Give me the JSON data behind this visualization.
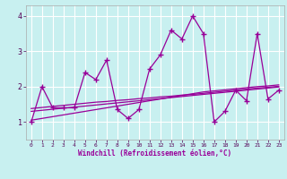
{
  "x": [
    0,
    1,
    2,
    3,
    4,
    5,
    6,
    7,
    8,
    9,
    10,
    11,
    12,
    13,
    14,
    15,
    16,
    17,
    18,
    19,
    20,
    21,
    22,
    23
  ],
  "main_line": [
    1.0,
    2.0,
    1.4,
    1.4,
    1.4,
    2.4,
    2.2,
    2.75,
    1.35,
    1.1,
    1.35,
    2.5,
    2.9,
    3.6,
    3.35,
    4.0,
    3.5,
    1.0,
    1.3,
    1.9,
    1.6,
    3.5,
    1.65,
    1.9
  ],
  "reg1": [
    1.05,
    1.1,
    1.15,
    1.2,
    1.25,
    1.3,
    1.35,
    1.4,
    1.45,
    1.5,
    1.55,
    1.6,
    1.65,
    1.7,
    1.75,
    1.8,
    1.85,
    1.88,
    1.91,
    1.94,
    1.97,
    2.0,
    2.02,
    2.05
  ],
  "reg2": [
    1.3,
    1.33,
    1.36,
    1.39,
    1.42,
    1.45,
    1.48,
    1.51,
    1.54,
    1.57,
    1.6,
    1.63,
    1.66,
    1.69,
    1.72,
    1.75,
    1.78,
    1.81,
    1.84,
    1.87,
    1.9,
    1.93,
    1.96,
    1.99
  ],
  "reg3": [
    1.38,
    1.41,
    1.44,
    1.47,
    1.5,
    1.53,
    1.56,
    1.58,
    1.61,
    1.63,
    1.66,
    1.68,
    1.71,
    1.73,
    1.76,
    1.78,
    1.81,
    1.84,
    1.87,
    1.9,
    1.93,
    1.96,
    1.98,
    2.01
  ],
  "xlim": [
    -0.5,
    23.5
  ],
  "ylim": [
    0.5,
    4.3
  ],
  "yticks": [
    1,
    2,
    3,
    4
  ],
  "xticks": [
    0,
    1,
    2,
    3,
    4,
    5,
    6,
    7,
    8,
    9,
    10,
    11,
    12,
    13,
    14,
    15,
    16,
    17,
    18,
    19,
    20,
    21,
    22,
    23
  ],
  "xlabel": "Windchill (Refroidissement éolien,°C)",
  "line_color": "#990099",
  "bg_color": "#c8f0f0",
  "grid_color": "#ffffff",
  "marker": "+",
  "marker_size": 4,
  "line_width": 0.9
}
